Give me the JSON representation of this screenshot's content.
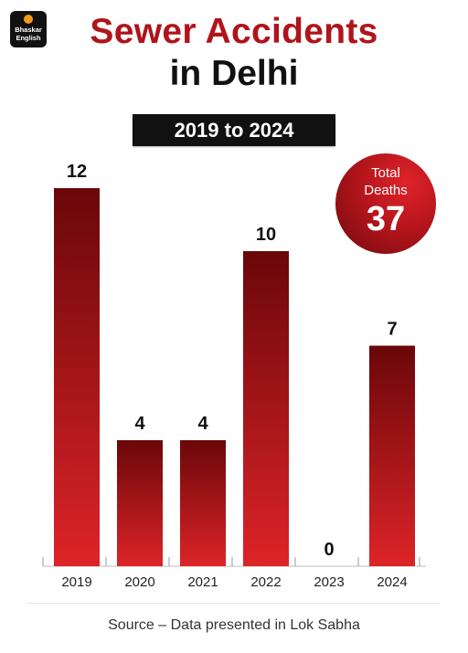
{
  "brand": {
    "line1": "Bhaskar",
    "line2": "English"
  },
  "title_line1": "Sewer Accidents",
  "title_line2": "in Delhi",
  "date_range": "2019 to 2024",
  "total": {
    "label_line1": "Total",
    "label_line2": "Deaths",
    "value": "37"
  },
  "colors": {
    "title_red": "#b0141b",
    "bar_top": "#6a0709",
    "bar_bottom": "#dd2428",
    "banner": "#111111"
  },
  "chart_data": {
    "type": "bar",
    "categories": [
      "2019",
      "2020",
      "2021",
      "2022",
      "2023",
      "2024"
    ],
    "values": [
      12,
      4,
      4,
      10,
      0,
      7
    ],
    "data_labels": [
      "12",
      "4",
      "4",
      "10",
      "0",
      "7"
    ],
    "title": "Sewer Accidents in Delhi",
    "xlabel": "",
    "ylabel": "",
    "ylim": [
      0,
      12
    ],
    "grid": false
  },
  "source": "Source – Data presented in Lok Sabha"
}
